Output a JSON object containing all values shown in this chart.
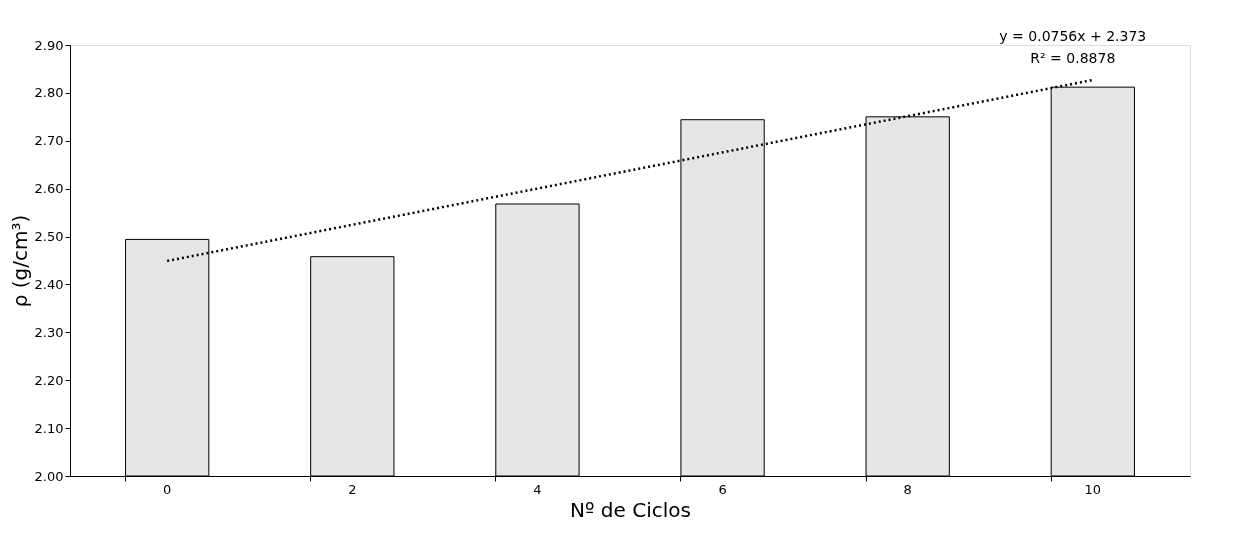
{
  "chart_data": {
    "type": "bar",
    "xlabel": "Nº de Ciclos",
    "ylabel": "ρ (g/cm³)",
    "categories": [
      "0",
      "2",
      "4",
      "6",
      "8",
      "10"
    ],
    "series": [
      {
        "color": "#e6e6e6",
        "values": [
          2.494,
          2.458,
          2.568,
          2.744,
          2.75,
          2.812
        ]
      },
      {
        "type": "line",
        "color": "#000000",
        "x": [
          "0",
          "10"
        ],
        "values": [
          2.449,
          2.827
        ],
        "line_style": "dotted",
        "marker": "none"
      }
    ],
    "ylim": [
      2.0,
      2.9
    ],
    "yticks": [
      {
        "value": 2.0,
        "label": "2.00"
      },
      {
        "value": 2.1,
        "label": "2.10"
      },
      {
        "value": 2.2,
        "label": "2.20"
      },
      {
        "value": 2.3,
        "label": "2.30"
      },
      {
        "value": 2.4,
        "label": "2.40"
      },
      {
        "value": 2.5,
        "label": "2.50"
      },
      {
        "value": 2.6,
        "label": "2.60"
      },
      {
        "value": 2.7,
        "label": "2.70"
      },
      {
        "value": 2.8,
        "label": "2.80"
      },
      {
        "value": 2.9,
        "label": "2.90"
      }
    ],
    "annotations": [
      "y = 0.0756x + 2.373",
      "R² = 0.8878"
    ],
    "grid": false
  }
}
